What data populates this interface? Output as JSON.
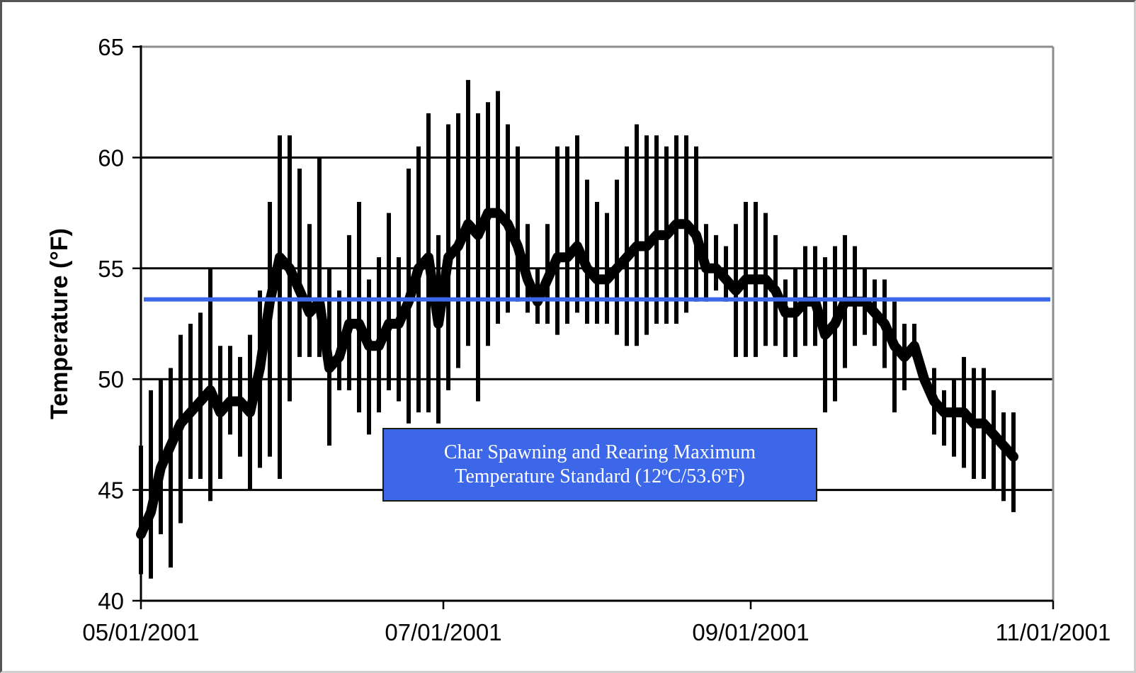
{
  "chart_data": {
    "type": "line",
    "title": "",
    "xlabel": "",
    "ylabel": "Temperature (°F)",
    "ylim": [
      40,
      65
    ],
    "yticks": [
      40,
      45,
      50,
      55,
      60,
      65
    ],
    "xlim": [
      "2001-05-01",
      "2001-11-01"
    ],
    "xticks": [
      {
        "date": "2001-05-01",
        "label": "05/01/2001"
      },
      {
        "date": "2001-07-01",
        "label": "07/01/2001"
      },
      {
        "date": "2001-09-01",
        "label": "09/01/2001"
      },
      {
        "date": "2001-11-01",
        "label": "11/01/2001"
      }
    ],
    "grid": "horizontal",
    "series": [
      {
        "style": "daily-range",
        "color": "#000000",
        "x": [
          "2001-05-01",
          "2001-05-03",
          "2001-05-05",
          "2001-05-07",
          "2001-05-09",
          "2001-05-11",
          "2001-05-13",
          "2001-05-15",
          "2001-05-17",
          "2001-05-19",
          "2001-05-21",
          "2001-05-23",
          "2001-05-25",
          "2001-05-27",
          "2001-05-29",
          "2001-05-31",
          "2001-06-02",
          "2001-06-04",
          "2001-06-06",
          "2001-06-08",
          "2001-06-10",
          "2001-06-12",
          "2001-06-14",
          "2001-06-16",
          "2001-06-18",
          "2001-06-20",
          "2001-06-22",
          "2001-06-24",
          "2001-06-26",
          "2001-06-28",
          "2001-06-30",
          "2001-07-02",
          "2001-07-04",
          "2001-07-06",
          "2001-07-08",
          "2001-07-10",
          "2001-07-12",
          "2001-07-14",
          "2001-07-16",
          "2001-07-18",
          "2001-07-20",
          "2001-07-22",
          "2001-07-24",
          "2001-07-26",
          "2001-07-28",
          "2001-07-30",
          "2001-08-01",
          "2001-08-03",
          "2001-08-05",
          "2001-08-07",
          "2001-08-09",
          "2001-08-11",
          "2001-08-13",
          "2001-08-15",
          "2001-08-17",
          "2001-08-19",
          "2001-08-21",
          "2001-08-23",
          "2001-08-25",
          "2001-08-27",
          "2001-08-29",
          "2001-08-31",
          "2001-09-02",
          "2001-09-04",
          "2001-09-06",
          "2001-09-08",
          "2001-09-10",
          "2001-09-12",
          "2001-09-14",
          "2001-09-16",
          "2001-09-18",
          "2001-09-20",
          "2001-09-22",
          "2001-09-24",
          "2001-09-26",
          "2001-09-28",
          "2001-09-30",
          "2001-10-02",
          "2001-10-04",
          "2001-10-06",
          "2001-10-08",
          "2001-10-10",
          "2001-10-12",
          "2001-10-14",
          "2001-10-16",
          "2001-10-18",
          "2001-10-20",
          "2001-10-22",
          "2001-10-24"
        ],
        "low": [
          41.2,
          41.0,
          43.0,
          41.5,
          43.5,
          45.5,
          45.5,
          44.5,
          45.5,
          47.5,
          46.5,
          45.0,
          46.0,
          46.5,
          45.5,
          49.0,
          51.0,
          51.0,
          51.0,
          47.0,
          49.5,
          49.5,
          48.5,
          47.5,
          48.5,
          49.5,
          49.0,
          48.0,
          48.5,
          48.5,
          48.0,
          49.5,
          50.5,
          51.5,
          49.0,
          51.5,
          52.5,
          53.0,
          53.5,
          53.0,
          52.5,
          52.5,
          52.0,
          52.5,
          53.0,
          52.5,
          52.5,
          52.5,
          52.0,
          51.5,
          51.5,
          52.0,
          52.5,
          52.5,
          52.5,
          53.0,
          53.5,
          53.5,
          54.0,
          53.5,
          51.0,
          51.0,
          51.0,
          51.5,
          51.5,
          51.0,
          51.0,
          51.5,
          51.5,
          48.5,
          49.0,
          50.5,
          51.5,
          52.0,
          51.5,
          50.5,
          48.5,
          49.5,
          51.0,
          50.5,
          47.5,
          47.0,
          46.5,
          46.0,
          45.5,
          45.5,
          45.0,
          44.5,
          44.0
        ],
        "high": [
          47.0,
          49.5,
          50.0,
          50.5,
          52.0,
          52.5,
          53.0,
          55.0,
          51.5,
          51.5,
          51.0,
          52.0,
          54.0,
          58.0,
          61.0,
          61.0,
          59.5,
          57.0,
          60.0,
          55.0,
          54.0,
          56.5,
          58.0,
          54.5,
          55.5,
          57.5,
          55.5,
          59.5,
          60.5,
          62.0,
          56.5,
          61.5,
          62.0,
          63.5,
          62.0,
          62.5,
          63.0,
          61.5,
          60.5,
          57.0,
          55.0,
          57.0,
          60.5,
          60.5,
          61.0,
          59.0,
          58.0,
          57.5,
          59.0,
          60.5,
          61.5,
          61.0,
          61.0,
          60.5,
          61.0,
          61.0,
          60.5,
          57.0,
          56.5,
          56.0,
          57.0,
          58.0,
          58.0,
          57.5,
          56.5,
          54.5,
          55.0,
          56.0,
          56.0,
          55.5,
          56.0,
          56.5,
          56.0,
          55.0,
          54.5,
          54.5,
          53.5,
          52.5,
          52.5,
          50.5,
          50.5,
          49.5,
          50.0,
          51.0,
          50.5,
          50.5,
          49.5,
          48.5,
          48.5
        ],
        "mean": [
          43.0,
          44.0,
          46.0,
          47.0,
          48.0,
          48.5,
          49.0,
          49.5,
          48.5,
          49.0,
          49.0,
          48.5,
          50.5,
          53.5,
          55.5,
          55.0,
          54.0,
          53.0,
          53.5,
          50.5,
          51.0,
          52.5,
          52.5,
          51.5,
          51.5,
          52.5,
          52.5,
          53.5,
          55.0,
          55.5,
          52.5,
          55.5,
          56.0,
          57.0,
          56.5,
          57.5,
          57.5,
          57.0,
          56.0,
          54.5,
          53.5,
          54.5,
          55.5,
          55.5,
          56.0,
          55.0,
          54.5,
          54.5,
          55.0,
          55.5,
          56.0,
          56.0,
          56.5,
          56.5,
          57.0,
          57.0,
          56.5,
          55.0,
          55.0,
          54.5,
          54.0,
          54.5,
          54.5,
          54.5,
          54.0,
          53.0,
          53.0,
          53.5,
          53.5,
          52.0,
          52.5,
          53.5,
          53.5,
          53.5,
          53.0,
          52.5,
          51.5,
          51.0,
          51.5,
          50.0,
          49.0,
          48.5,
          48.5,
          48.5,
          48.0,
          48.0,
          47.5,
          47.0,
          46.5
        ]
      }
    ],
    "threshold": {
      "value": 53.6,
      "color": "#3b67e8"
    },
    "annotation": {
      "lines": [
        "Char Spawning and Rearing Maximum",
        "Temperature Standard (12ºC/53.6ºF)"
      ],
      "background": "#3b67e8",
      "text_color": "#ffffff"
    }
  }
}
